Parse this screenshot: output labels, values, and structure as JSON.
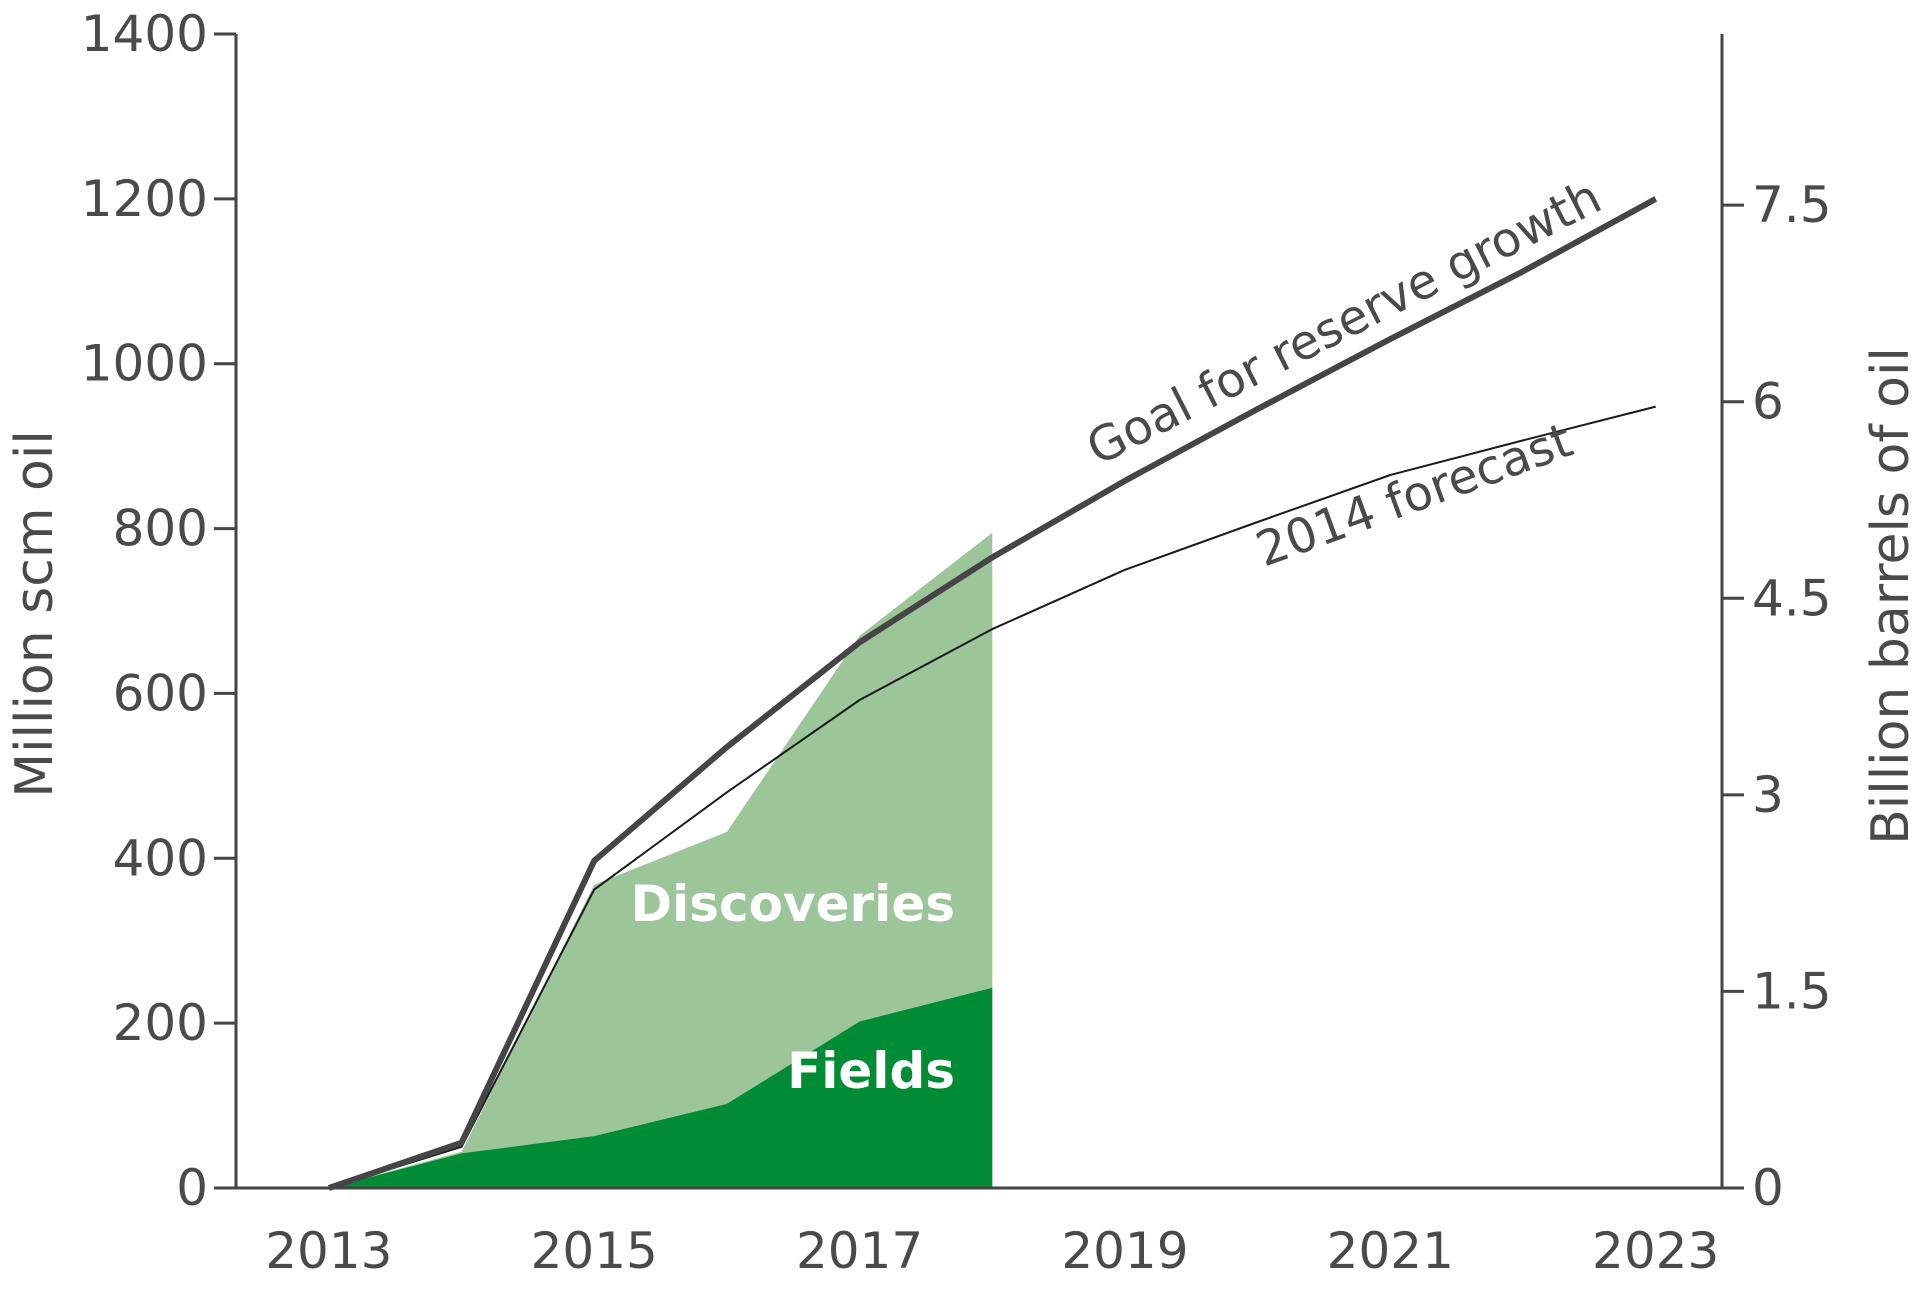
{
  "chart_data": {
    "type": "area",
    "x": [
      2013,
      2014,
      2015,
      2016,
      2017,
      2018,
      2019,
      2020,
      2021,
      2022,
      2023
    ],
    "series": [
      {
        "name": "Fields",
        "values": [
          0,
          42,
          63,
          102,
          202,
          243,
          null,
          null,
          null,
          null,
          null
        ],
        "color": "#008c35",
        "kind": "area"
      },
      {
        "name": "Discoveries",
        "values": [
          0,
          44,
          368,
          432,
          670,
          795,
          null,
          null,
          null,
          null,
          null
        ],
        "color": "#9cc59a",
        "kind": "area"
      },
      {
        "name": "Goal for reserve growth",
        "values": [
          0,
          55,
          397,
          535,
          662,
          765,
          858,
          945,
          1030,
          1112,
          1200
        ],
        "color": "#454545",
        "kind": "line"
      },
      {
        "name": "2014 forecast",
        "values": [
          0,
          50,
          362,
          480,
          592,
          678,
          750,
          808,
          865,
          907,
          948
        ],
        "color": "#1a1a1a",
        "kind": "line"
      }
    ],
    "xlim": [
      2012.3,
      2023.5
    ],
    "x_ticks": [
      "2013",
      "2015",
      "2017",
      "2019",
      "2021",
      "2023"
    ],
    "x_tick_values": [
      2013,
      2015,
      2017,
      2019,
      2021,
      2023
    ],
    "ylim": [
      0,
      1400
    ],
    "y_ticks": [
      "0",
      "200",
      "400",
      "600",
      "800",
      "1000",
      "1200",
      "1400"
    ],
    "y_tick_values": [
      0,
      200,
      400,
      600,
      800,
      1000,
      1200,
      1400
    ],
    "ylabel": "Million scm oil",
    "y2lim": [
      0,
      8.806
    ],
    "y2_ticks": [
      "0",
      "1.5",
      "3",
      "4.5",
      "6",
      "7.5"
    ],
    "y2_tick_values": [
      0,
      1.5,
      3,
      4.5,
      6,
      7.5
    ],
    "y2label": "Billion barrels of oil",
    "annotations": {
      "goal": "Goal for reserve growth",
      "forecast": "2014 forecast",
      "discoveries": "Discoveries",
      "fields": "Fields"
    },
    "grid": false,
    "legend": "none"
  }
}
